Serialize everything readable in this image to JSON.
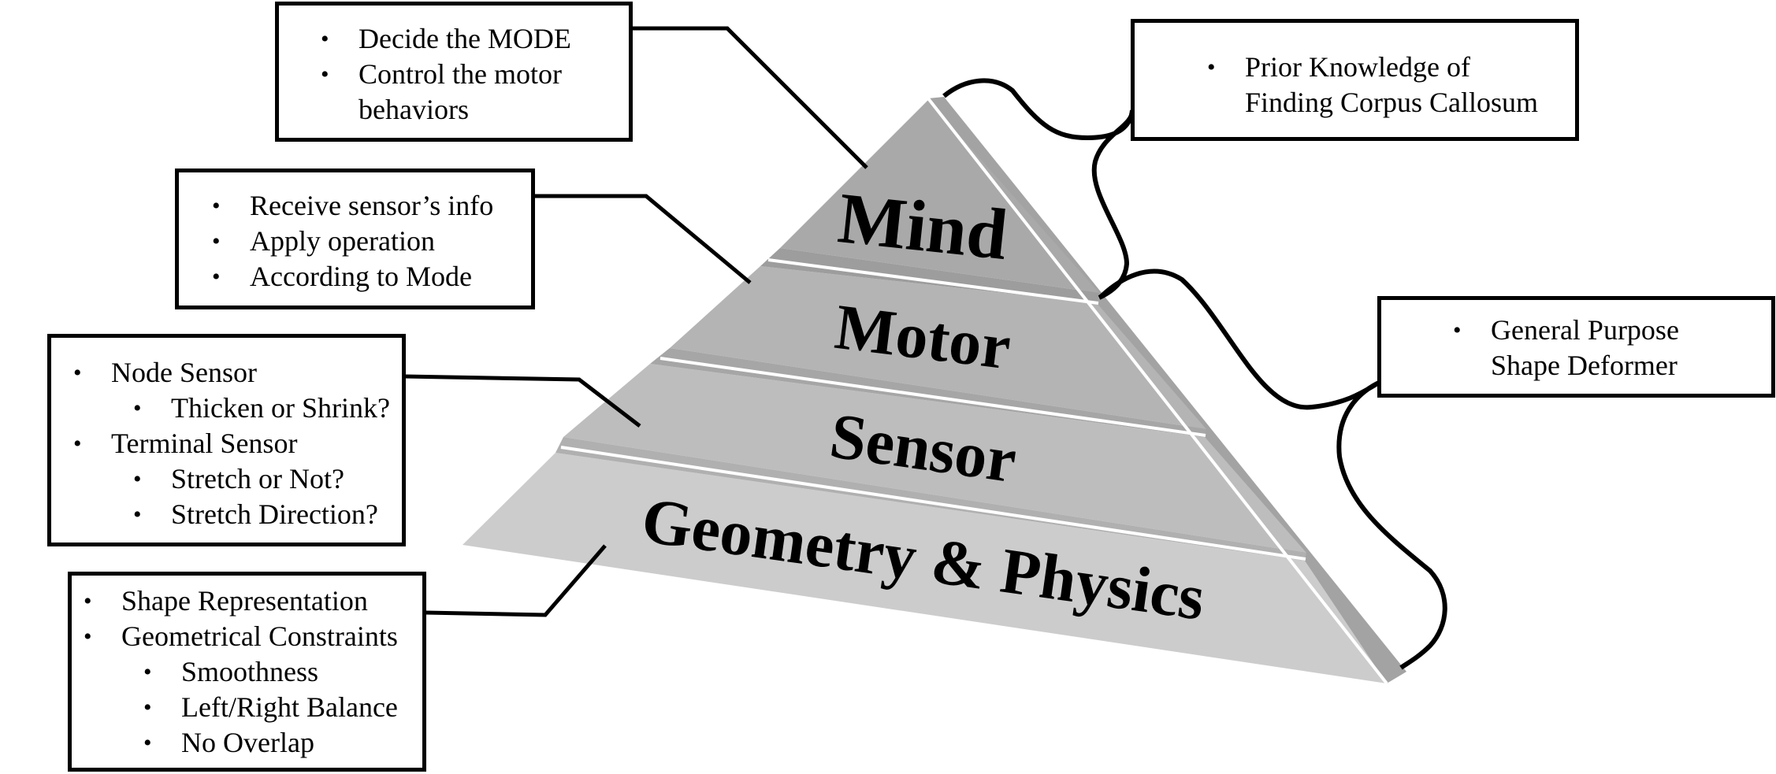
{
  "pyramid": {
    "tiers": [
      {
        "id": "mind",
        "label": "Mind"
      },
      {
        "id": "motor",
        "label": "Motor"
      },
      {
        "id": "sensor",
        "label": "Sensor"
      },
      {
        "id": "geometry",
        "label": "Geometry & Physics"
      }
    ],
    "colors": {
      "top": "#a9a9a9",
      "middle": "#b8b8b8",
      "bottom": "#cccccc",
      "right_face": "#a0a0a0"
    }
  },
  "boxes": {
    "mind": {
      "items": [
        {
          "text": "Decide the MODE",
          "level": 1
        },
        {
          "text": "Control the motor",
          "level": 1
        },
        {
          "text": "behaviors",
          "level": 0
        }
      ]
    },
    "motor": {
      "items": [
        {
          "text": "Receive sensor’s info",
          "level": 1
        },
        {
          "text": "Apply operation",
          "level": 1
        },
        {
          "text": "According to Mode",
          "level": 1
        }
      ]
    },
    "sensor": {
      "items": [
        {
          "text": "Node Sensor",
          "level": 1
        },
        {
          "text": "Thicken or Shrink?",
          "level": 2
        },
        {
          "text": "Terminal Sensor",
          "level": 1
        },
        {
          "text": "Stretch or Not?",
          "level": 2
        },
        {
          "text": "Stretch Direction?",
          "level": 2
        }
      ]
    },
    "geometry": {
      "items": [
        {
          "text": "Shape Representation",
          "level": 1
        },
        {
          "text": "Geometrical Constraints",
          "level": 1
        },
        {
          "text": "Smoothness",
          "level": 2
        },
        {
          "text": "Left/Right Balance",
          "level": 2
        },
        {
          "text": "No Overlap",
          "level": 2
        }
      ]
    },
    "prior": {
      "items": [
        {
          "text": "Prior Knowledge of",
          "level": 1
        },
        {
          "text": "Finding Corpus Callosum",
          "level": 0
        }
      ]
    },
    "deformer": {
      "items": [
        {
          "text": "General Purpose",
          "level": 1
        },
        {
          "text": "Shape Deformer",
          "level": 0
        }
      ]
    }
  }
}
